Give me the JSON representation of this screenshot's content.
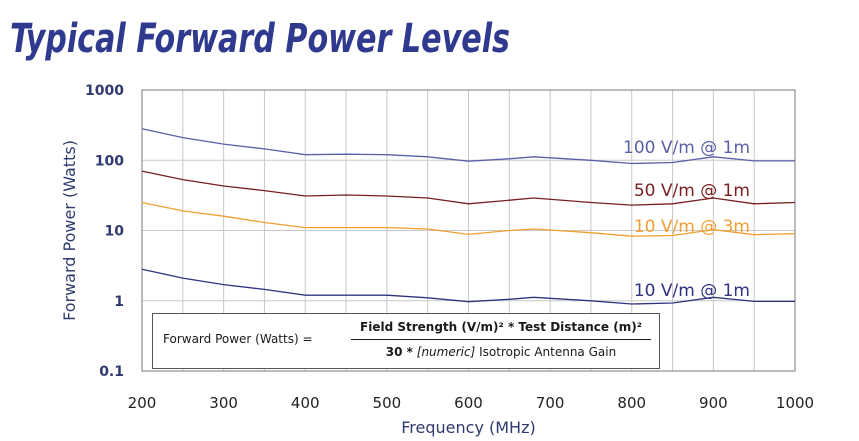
{
  "chart_data": {
    "type": "line",
    "title": "Typical Forward Power Levels",
    "xlabel": "Frequency (MHz)",
    "ylabel": "Forward Power (Watts)",
    "xlim": [
      200,
      1000
    ],
    "ylim": [
      0.1,
      1000
    ],
    "yscale": "log",
    "x_ticks": [
      200,
      300,
      400,
      500,
      600,
      700,
      800,
      900,
      1000
    ],
    "x_tick_labels": [
      "200",
      "300",
      "400",
      "500",
      "600",
      "700",
      "800",
      "900",
      "1000"
    ],
    "y_ticks": [
      0.1,
      1,
      10,
      100,
      1000
    ],
    "y_tick_labels": [
      "0.1",
      "1",
      "10",
      "100",
      "1000"
    ],
    "grid": true,
    "series": [
      {
        "name": "100 V/m @ 1m",
        "color": "#5b5fa8",
        "x": [
          200,
          250,
          300,
          350,
          400,
          450,
          500,
          550,
          600,
          650,
          680,
          750,
          800,
          850,
          900,
          950,
          1000
        ],
        "y": [
          280,
          210,
          170,
          145,
          120,
          122,
          120,
          112,
          97,
          105,
          112,
          100,
          90,
          93,
          112,
          98,
          98
        ]
      },
      {
        "name": "50 V/m @ 1m",
        "color": "#7a1f1f",
        "x": [
          200,
          250,
          300,
          350,
          400,
          450,
          500,
          550,
          600,
          650,
          680,
          750,
          800,
          850,
          900,
          950,
          1000
        ],
        "y": [
          70,
          53,
          43,
          37,
          31,
          32,
          31,
          29,
          24,
          27,
          29,
          25,
          23,
          24,
          29,
          24,
          25
        ]
      },
      {
        "name": "10 V/m @ 3m",
        "color": "#f0a030",
        "x": [
          200,
          250,
          300,
          350,
          400,
          450,
          500,
          550,
          600,
          650,
          680,
          750,
          800,
          850,
          900,
          950,
          1000
        ],
        "y": [
          25,
          19,
          16,
          13,
          11,
          11,
          11,
          10.5,
          8.8,
          10,
          10.5,
          9.3,
          8.3,
          8.5,
          10.3,
          8.7,
          9
        ]
      },
      {
        "name": "10 V/m @ 1m",
        "color": "#2f3380",
        "x": [
          200,
          250,
          300,
          350,
          400,
          450,
          500,
          550,
          600,
          650,
          680,
          750,
          800,
          850,
          900,
          950,
          1000
        ],
        "y": [
          2.8,
          2.1,
          1.7,
          1.45,
          1.2,
          1.2,
          1.2,
          1.1,
          0.97,
          1.05,
          1.12,
          1.0,
          0.9,
          0.93,
          1.12,
          0.98,
          0.98
        ]
      }
    ],
    "formula": {
      "lhs": "Forward Power (Watts) =",
      "numerator": "Field Strength (V/m)² * Test Distance (m)²",
      "denominator_prefix": "30 *",
      "denominator_italic": "[numeric]",
      "denominator_suffix": "Isotropic Antenna Gain"
    }
  }
}
